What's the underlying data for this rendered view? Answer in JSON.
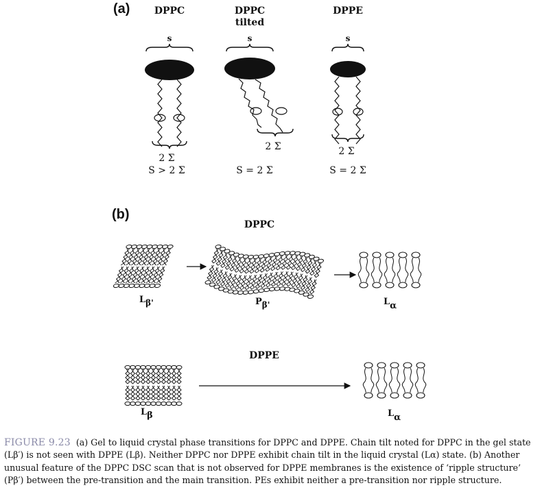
{
  "panel_a": {
    "letter": "(a)",
    "cols": [
      {
        "name": "DPPC",
        "sub": "",
        "s_label": "s",
        "sigma_label": "2 Σ",
        "relation": "S > 2 Σ"
      },
      {
        "name": "DPPC",
        "sub": "tilted",
        "s_label": "s",
        "sigma_label": "2 Σ",
        "relation": "S = 2 Σ"
      },
      {
        "name": "DPPE",
        "sub": "",
        "s_label": "s",
        "sigma_label": "2 Σ",
        "relation": "S = 2 Σ"
      }
    ]
  },
  "panel_b": {
    "letter": "(b)",
    "dppc_title": "DPPC",
    "dppe_title": "DPPE",
    "phases": {
      "dppc_gel": {
        "main": "L",
        "sub": "β'"
      },
      "dppc_ripple": {
        "main": "P",
        "sub": "β'"
      },
      "dppc_liquid": {
        "main": "L",
        "sub": "α"
      },
      "dppe_gel": {
        "main": "L",
        "sub": "β"
      },
      "dppe_liquid": {
        "main": "L",
        "sub": "α"
      }
    }
  },
  "caption": {
    "label": "FIGURE 9.23",
    "text": "(a) Gel to liquid crystal phase transitions for DPPC and DPPE. Chain tilt noted for DPPC in the gel state (Lβ′) is not seen with DPPE (Lβ). Neither DPPC nor DPPE exhibit chain tilt in the liquid crystal (Lα) state. (b) Another unusual feature of the DPPC DSC scan that is not observed for DPPE membranes is the existence of ‘ripple structure’ (Pβ′) between the pre-transition and the main transition. PEs exhibit neither a pre-transition nor ripple structure."
  },
  "colors": {
    "ink": "#111111",
    "caption_label": "#8a8aa8"
  }
}
